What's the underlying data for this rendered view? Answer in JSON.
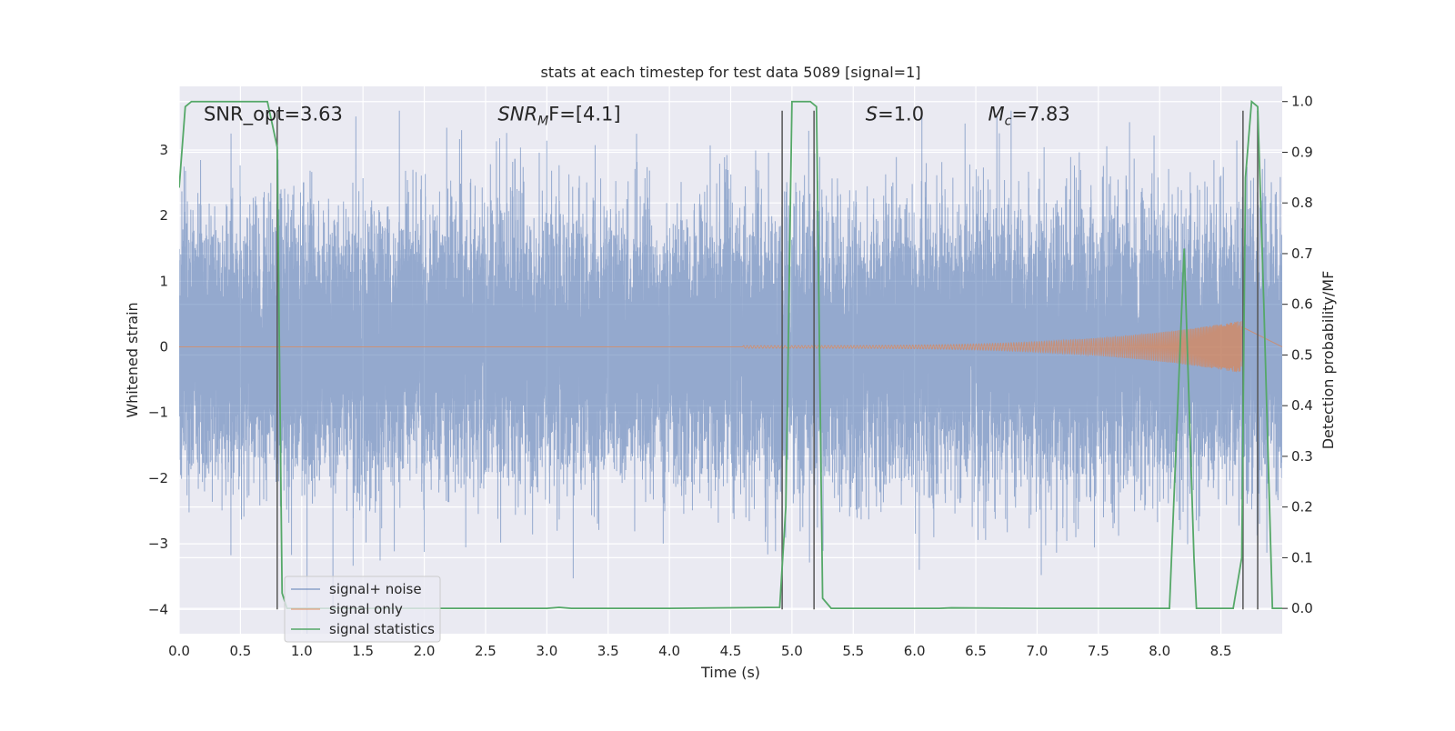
{
  "chart_data": {
    "type": "line",
    "title": "stats at each timestep for test data 5089 [signal=1]",
    "xlabel": "Time (s)",
    "ylabel": "Whitened strain",
    "ylabel_right": "Detection probability/MF",
    "xlim": [
      0,
      9.0
    ],
    "ylim": [
      -4.37,
      3.97
    ],
    "ylim_right": [
      -0.05,
      1.03
    ],
    "x_ticks": [
      0.0,
      0.5,
      1.0,
      1.5,
      2.0,
      2.5,
      3.0,
      3.5,
      4.0,
      4.5,
      5.0,
      5.5,
      6.0,
      6.5,
      7.0,
      7.5,
      8.0,
      8.5
    ],
    "x_tick_labels": [
      "0.0",
      "0.5",
      "1.0",
      "1.5",
      "2.0",
      "2.5",
      "3.0",
      "3.5",
      "4.0",
      "4.5",
      "5.0",
      "5.5",
      "6.0",
      "6.5",
      "7.0",
      "7.5",
      "8.0",
      "8.5"
    ],
    "y_ticks": [
      -4,
      -3,
      -2,
      -1,
      0,
      1,
      2,
      3
    ],
    "y_tick_labels": [
      "−4",
      "−3",
      "−2",
      "−1",
      "0",
      "1",
      "2",
      "3"
    ],
    "y_right_ticks": [
      0.0,
      0.1,
      0.2,
      0.3,
      0.4,
      0.5,
      0.6,
      0.7,
      0.8,
      0.9,
      1.0
    ],
    "y_right_tick_labels": [
      "0.0",
      "0.1",
      "0.2",
      "0.3",
      "0.4",
      "0.5",
      "0.6",
      "0.7",
      "0.8",
      "0.9",
      "1.0"
    ],
    "grid": true,
    "legend_position": "lower-left",
    "annotations": [
      {
        "text": "SNR_opt=3.63",
        "x": 0.2,
        "y": 3.55
      },
      {
        "text": "SNR",
        "sub": "M",
        "tail": "F=[4.1]",
        "italic": true,
        "x": 2.6,
        "y": 3.55
      },
      {
        "text": "S",
        "tail": "=1.0",
        "italic": true,
        "x": 5.6,
        "y": 3.55
      },
      {
        "text": "M",
        "sub": "c",
        "tail": "=7.83",
        "italic": true,
        "x": 6.6,
        "y": 3.55
      }
    ],
    "vlines": [
      0.8,
      4.92,
      5.18,
      8.68,
      8.8
    ],
    "series": [
      {
        "name": "signal+ noise",
        "color": "#4c72b0",
        "axis": "left",
        "kind": "noise",
        "sample_rate": 2048,
        "std": 1.0,
        "clip": [
          -4.37,
          3.6
        ]
      },
      {
        "name": "signal only",
        "color": "#dd8452",
        "axis": "left",
        "kind": "chirp",
        "t_start": 4.6,
        "t_merge": 8.67,
        "amp_start": 0.02,
        "amp_peak": 0.4
      },
      {
        "name": "signal statistics",
        "color": "#55a868",
        "axis": "right",
        "kind": "line",
        "x": [
          0.0,
          0.05,
          0.1,
          0.2,
          0.5,
          0.72,
          0.8,
          0.84,
          0.88,
          1.0,
          3.0,
          3.1,
          3.2,
          4.0,
          4.9,
          4.95,
          5.0,
          5.15,
          5.2,
          5.25,
          5.32,
          5.5,
          6.2,
          6.3,
          7.0,
          8.08,
          8.2,
          8.28,
          8.3,
          8.6,
          8.67,
          8.7,
          8.75,
          8.8,
          8.85,
          8.92,
          9.0
        ],
        "y": [
          0.83,
          0.99,
          1.0,
          1.0,
          1.0,
          1.0,
          0.91,
          0.03,
          0.0,
          0.0,
          0.0,
          0.002,
          0.0,
          0.0,
          0.002,
          0.2,
          1.0,
          1.0,
          0.99,
          0.02,
          0.0,
          0.0,
          0.0,
          0.001,
          0.0,
          0.0,
          0.71,
          0.1,
          0.0,
          0.0,
          0.1,
          0.85,
          1.0,
          0.99,
          0.6,
          0.0,
          0.0
        ]
      }
    ]
  }
}
